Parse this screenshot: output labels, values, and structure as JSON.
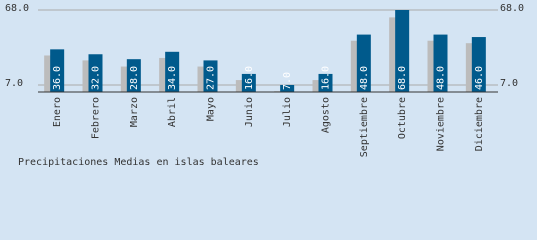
{
  "chart_data": {
    "type": "bar",
    "title": "Precipitaciones Medias en islas baleares",
    "categories": [
      "Enero",
      "Febrero",
      "Marzo",
      "Abril",
      "Mayo",
      "Junio",
      "Julio",
      "Agosto",
      "Septiembre",
      "Octubre",
      "Noviembre",
      "Diciembre"
    ],
    "values": [
      36,
      32,
      28,
      34,
      27,
      16,
      7,
      16,
      48,
      68,
      48,
      46
    ],
    "value_labels": [
      "36.0",
      "32.0",
      "28.0",
      "34.0",
      "27.0",
      "16.0",
      "7.0",
      "16.0",
      "48.0",
      "68.0",
      "48.0",
      "46.0"
    ],
    "shadow_values": [
      31,
      27,
      22,
      29,
      22,
      11,
      2,
      11,
      43,
      62,
      43,
      41
    ],
    "color": "#005a8c",
    "shadow_color": "#bcbcbc",
    "ylim": [
      1.3,
      68
    ],
    "yticks": [
      {
        "value": 7,
        "label": "7.0"
      },
      {
        "value": 68,
        "label": "68.0"
      }
    ],
    "grid": true
  }
}
